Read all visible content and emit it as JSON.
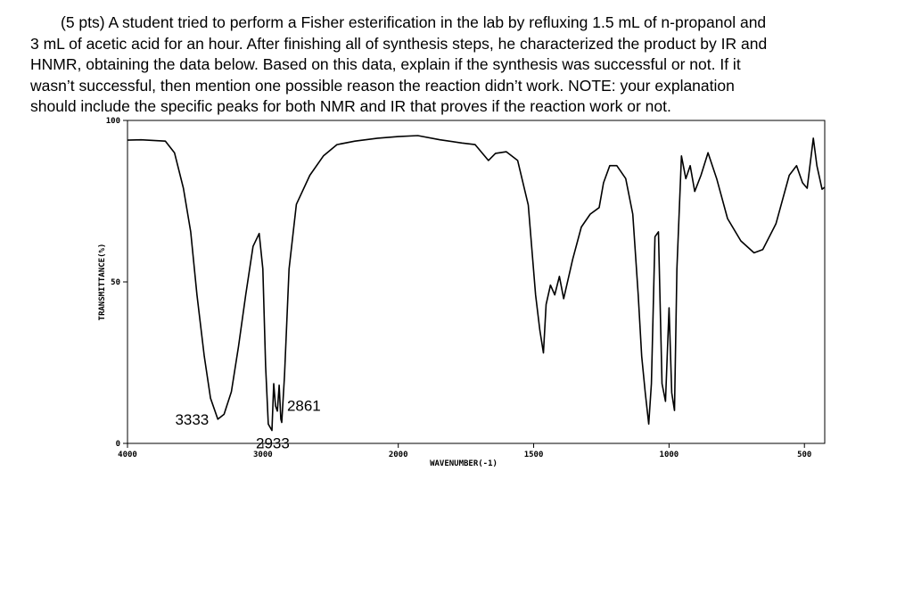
{
  "question": {
    "lines": [
      "(5 pts) A student tried to perform a Fisher esterification in the lab by refluxing 1.5 mL of n-propanol and",
      "3 mL of acetic acid for an hour. After finishing all of synthesis steps, he characterized the product by IR and",
      "HNMR, obtaining the data below. Based on this data, explain if the synthesis was successful or not. If it",
      "wasn’t successful, then mention one possible reason the reaction didn’t work. NOTE: your explanation",
      "should include the specific peaks for both NMR and IR that proves if the reaction work or not."
    ]
  },
  "chart_data": {
    "type": "line",
    "x_label": "WAVENUMBER(-1)",
    "y_label": "TRANSMITTANCE(%)",
    "color": "#000000",
    "xlim": [
      4000,
      425
    ],
    "ylim": [
      0,
      100
    ],
    "xticks": [
      4000,
      3000,
      2000,
      1500,
      1000,
      500
    ],
    "yticks": [
      0,
      50,
      100
    ],
    "annotations": [
      3333,
      2933,
      2861
    ],
    "x": [
      4000,
      3900,
      3720,
      3653,
      3587,
      3533,
      3487,
      3433,
      3387,
      3333,
      3287,
      3233,
      3180,
      3127,
      3073,
      3027,
      3000,
      2980,
      2960,
      2947,
      2933,
      2920,
      2907,
      2893,
      2880,
      2867,
      2861,
      2840,
      2807,
      2753,
      2653,
      2553,
      2453,
      2320,
      2153,
      2000,
      1928,
      1846,
      1765,
      1716,
      1667,
      1641,
      1601,
      1559,
      1520,
      1493,
      1477,
      1464,
      1454,
      1438,
      1422,
      1405,
      1389,
      1356,
      1324,
      1291,
      1258,
      1242,
      1219,
      1193,
      1160,
      1134,
      1114,
      1101,
      1088,
      1075,
      1065,
      1052,
      1039,
      1026,
      1013,
      1000,
      990,
      980,
      971,
      954,
      938,
      922,
      905,
      882,
      856,
      824,
      784,
      735,
      686,
      654,
      605,
      556,
      529,
      507,
      490,
      467,
      454,
      435,
      425
    ],
    "values": [
      93.9,
      94,
      93.6,
      90,
      79,
      65.5,
      46,
      27,
      14,
      7.5,
      9,
      16,
      30,
      46,
      61,
      65,
      54,
      24,
      6,
      5,
      4,
      18.5,
      11.6,
      10,
      18,
      7.5,
      6.5,
      21,
      54,
      74,
      83,
      89,
      92.5,
      93.6,
      94.5,
      95,
      95.3,
      94,
      93,
      92.5,
      87.6,
      89.8,
      90.3,
      87.6,
      73.8,
      46,
      35,
      28,
      43,
      49,
      46,
      51.7,
      44.8,
      57,
      67,
      71,
      73,
      80.7,
      86,
      86,
      82,
      71,
      46,
      27,
      15.7,
      6,
      18.5,
      64,
      65.5,
      18.5,
      13,
      42,
      15.7,
      10.2,
      54,
      89,
      82,
      86,
      78,
      83,
      90,
      82,
      69.6,
      62.7,
      59,
      60,
      68,
      83,
      86,
      80.7,
      79,
      94.5,
      86,
      78.7,
      79.3
    ]
  }
}
